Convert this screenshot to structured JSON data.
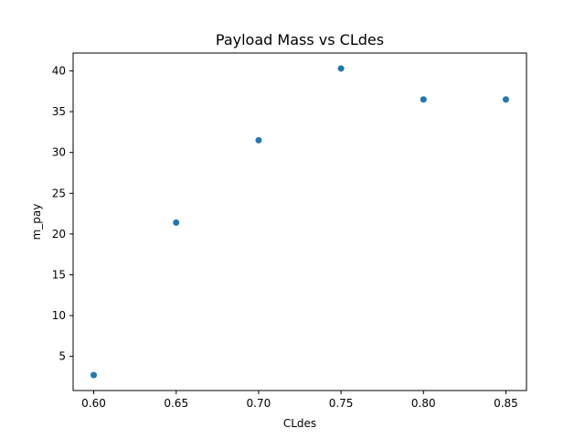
{
  "chart_data": {
    "type": "scatter",
    "title": "Payload Mass vs CLdes",
    "xlabel": "CLdes",
    "ylabel": "m_pay",
    "x": [
      0.6,
      0.65,
      0.7,
      0.75,
      0.8,
      0.85
    ],
    "y": [
      2.7,
      21.4,
      31.5,
      40.3,
      36.5,
      36.5
    ],
    "xlim": [
      0.5875,
      0.8625
    ],
    "ylim": [
      0.81,
      42.19
    ],
    "xticks": [
      "0.60",
      "0.65",
      "0.70",
      "0.75",
      "0.80",
      "0.85"
    ],
    "yticks": [
      "5",
      "10",
      "15",
      "20",
      "25",
      "30",
      "35",
      "40"
    ],
    "grid": false,
    "color": "#1f77b4"
  }
}
